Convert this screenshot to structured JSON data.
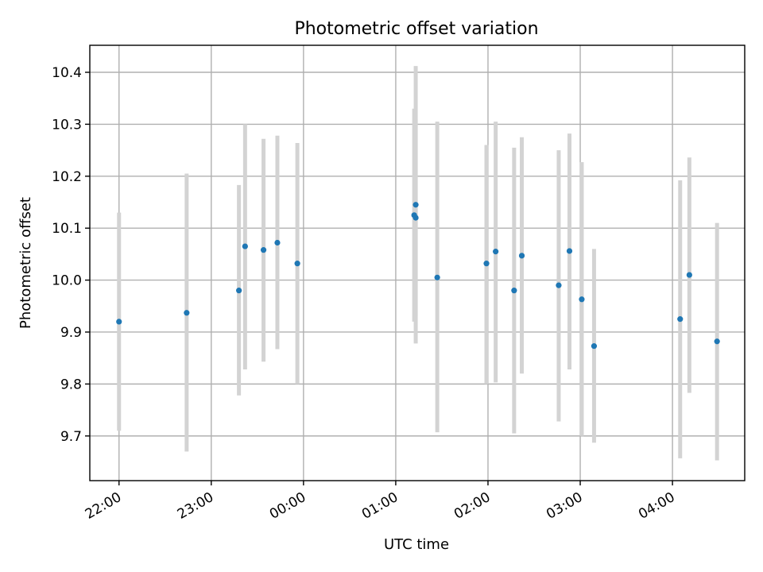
{
  "chart_data": {
    "type": "scatter",
    "title": "Photometric offset variation",
    "xlabel": "UTC time",
    "ylabel": "Photometric offset",
    "grid": true,
    "x_tick_labels": [
      "22:00",
      "23:00",
      "00:00",
      "01:00",
      "02:00",
      "03:00",
      "04:00"
    ],
    "y_ticks": [
      9.7,
      9.8,
      9.9,
      10.0,
      10.1,
      10.2,
      10.3,
      10.4
    ],
    "y_tick_labels": [
      "9.7",
      "9.8",
      "9.9",
      "10.0",
      "10.1",
      "10.2",
      "10.3",
      "10.4"
    ],
    "xlim": [
      "21:41",
      "04:47"
    ],
    "ylim": [
      9.614,
      10.452
    ],
    "series": [
      {
        "marker_color": "#1f77b4",
        "errorbar_color": "#d3d3d3",
        "points": [
          {
            "x": "22:00",
            "y": 9.92,
            "err_low": 9.71,
            "err_high": 10.13
          },
          {
            "x": "22:44",
            "y": 9.937,
            "err_low": 9.67,
            "err_high": 10.205
          },
          {
            "x": "23:18",
            "y": 9.98,
            "err_low": 9.778,
            "err_high": 10.183
          },
          {
            "x": "23:22",
            "y": 10.065,
            "err_low": 9.828,
            "err_high": 10.3
          },
          {
            "x": "23:34",
            "y": 10.058,
            "err_low": 9.843,
            "err_high": 10.272
          },
          {
            "x": "23:43",
            "y": 10.072,
            "err_low": 9.867,
            "err_high": 10.278
          },
          {
            "x": "23:56",
            "y": 10.032,
            "err_low": 9.8,
            "err_high": 10.264
          },
          {
            "x": "01:12",
            "y": 10.125,
            "err_low": 9.92,
            "err_high": 10.33
          },
          {
            "x": "01:13",
            "y": 10.145,
            "err_low": 9.878,
            "err_high": 10.412
          },
          {
            "x": "01:13",
            "y": 10.12,
            "err_low": 9.93,
            "err_high": 10.31
          },
          {
            "x": "01:27",
            "y": 10.005,
            "err_low": 9.707,
            "err_high": 10.305
          },
          {
            "x": "01:59",
            "y": 10.032,
            "err_low": 9.8,
            "err_high": 10.26
          },
          {
            "x": "02:05",
            "y": 10.055,
            "err_low": 9.803,
            "err_high": 10.305
          },
          {
            "x": "02:17",
            "y": 9.98,
            "err_low": 9.705,
            "err_high": 10.255
          },
          {
            "x": "02:22",
            "y": 10.047,
            "err_low": 9.82,
            "err_high": 10.275
          },
          {
            "x": "02:46",
            "y": 9.99,
            "err_low": 9.728,
            "err_high": 10.25
          },
          {
            "x": "02:53",
            "y": 10.056,
            "err_low": 9.828,
            "err_high": 10.282
          },
          {
            "x": "03:01",
            "y": 9.963,
            "err_low": 9.7,
            "err_high": 10.227
          },
          {
            "x": "03:09",
            "y": 9.873,
            "err_low": 9.687,
            "err_high": 10.06
          },
          {
            "x": "04:05",
            "y": 9.925,
            "err_low": 9.657,
            "err_high": 10.192
          },
          {
            "x": "04:11",
            "y": 10.01,
            "err_low": 9.783,
            "err_high": 10.236
          },
          {
            "x": "04:29",
            "y": 9.882,
            "err_low": 9.653,
            "err_high": 10.11
          }
        ]
      }
    ]
  }
}
